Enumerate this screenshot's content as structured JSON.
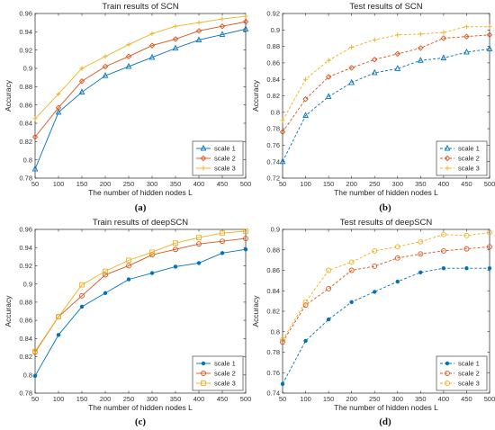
{
  "chart_data": [
    {
      "id": "a",
      "type": "line",
      "title": "Train results of SCN",
      "caption": "(a)",
      "xlabel": "The number of hidden nodes L",
      "ylabel": "Accuracy",
      "x": [
        50,
        100,
        150,
        200,
        250,
        300,
        350,
        400,
        450,
        500
      ],
      "xlim": [
        50,
        500
      ],
      "ylim": [
        0.78,
        0.96
      ],
      "yticks": [
        0.78,
        0.8,
        0.82,
        0.84,
        0.86,
        0.88,
        0.9,
        0.92,
        0.94,
        0.96
      ],
      "legend_position": "bottom-right",
      "series": [
        {
          "name": "scale 1",
          "color": "#0072BD",
          "marker": "triangle",
          "dashed": false,
          "values": [
            0.79,
            0.852,
            0.874,
            0.892,
            0.902,
            0.912,
            0.922,
            0.931,
            0.937,
            0.943
          ]
        },
        {
          "name": "scale 2",
          "color": "#D95319",
          "marker": "diamond",
          "dashed": false,
          "values": [
            0.825,
            0.857,
            0.886,
            0.902,
            0.913,
            0.925,
            0.932,
            0.941,
            0.946,
            0.951
          ]
        },
        {
          "name": "scale 3",
          "color": "#EDB120",
          "marker": "plus",
          "dashed": false,
          "values": [
            0.845,
            0.872,
            0.9,
            0.913,
            0.926,
            0.938,
            0.946,
            0.95,
            0.954,
            0.957
          ]
        }
      ]
    },
    {
      "id": "b",
      "type": "line",
      "title": "Test results of SCN",
      "caption": "(b)",
      "xlabel": "The number of hidden nodes L",
      "ylabel": "Accuracy",
      "x": [
        50,
        100,
        150,
        200,
        250,
        300,
        350,
        400,
        450,
        500
      ],
      "xlim": [
        50,
        500
      ],
      "ylim": [
        0.72,
        0.92
      ],
      "yticks": [
        0.72,
        0.74,
        0.76,
        0.78,
        0.8,
        0.82,
        0.84,
        0.86,
        0.88,
        0.9,
        0.92
      ],
      "legend_position": "bottom-right",
      "series": [
        {
          "name": "scale 1",
          "color": "#0072BD",
          "marker": "triangle",
          "dashed": true,
          "values": [
            0.74,
            0.796,
            0.819,
            0.836,
            0.848,
            0.853,
            0.863,
            0.866,
            0.873,
            0.877
          ]
        },
        {
          "name": "scale 2",
          "color": "#D95319",
          "marker": "diamond",
          "dashed": true,
          "values": [
            0.776,
            0.816,
            0.843,
            0.854,
            0.864,
            0.871,
            0.878,
            0.89,
            0.892,
            0.894
          ]
        },
        {
          "name": "scale 3",
          "color": "#EDB120",
          "marker": "plus",
          "dashed": true,
          "values": [
            0.79,
            0.84,
            0.863,
            0.879,
            0.888,
            0.894,
            0.895,
            0.897,
            0.904,
            0.904
          ]
        }
      ]
    },
    {
      "id": "c",
      "type": "line",
      "title": "Train results of deepSCN",
      "caption": "(c)",
      "xlabel": "The number of hidden nodes L",
      "ylabel": "Accuracy",
      "x": [
        50,
        100,
        150,
        200,
        250,
        300,
        350,
        400,
        450,
        500
      ],
      "xlim": [
        50,
        500
      ],
      "ylim": [
        0.78,
        0.96
      ],
      "yticks": [
        0.78,
        0.8,
        0.82,
        0.84,
        0.86,
        0.88,
        0.9,
        0.92,
        0.94,
        0.96
      ],
      "legend_position": "bottom-right",
      "series": [
        {
          "name": "scale 1",
          "color": "#0072BD",
          "marker": "dot",
          "dashed": false,
          "values": [
            0.799,
            0.844,
            0.875,
            0.89,
            0.905,
            0.912,
            0.919,
            0.923,
            0.934,
            0.938
          ]
        },
        {
          "name": "scale 2",
          "color": "#D95319",
          "marker": "circle",
          "dashed": false,
          "values": [
            0.825,
            0.864,
            0.887,
            0.91,
            0.92,
            0.932,
            0.938,
            0.944,
            0.947,
            0.95
          ]
        },
        {
          "name": "scale 3",
          "color": "#EDB120",
          "marker": "square",
          "dashed": false,
          "values": [
            0.826,
            0.864,
            0.899,
            0.914,
            0.926,
            0.935,
            0.945,
            0.951,
            0.956,
            0.958
          ]
        }
      ]
    },
    {
      "id": "d",
      "type": "line",
      "title": "Test results of deepSCN",
      "caption": "(d)",
      "xlabel": "The number of hidden nodes L",
      "ylabel": "Accuracy",
      "x": [
        50,
        100,
        150,
        200,
        250,
        300,
        350,
        400,
        450,
        500
      ],
      "xlim": [
        50,
        500
      ],
      "ylim": [
        0.74,
        0.9
      ],
      "yticks": [
        0.74,
        0.76,
        0.78,
        0.8,
        0.82,
        0.84,
        0.86,
        0.88,
        0.9
      ],
      "legend_position": "bottom-right",
      "series": [
        {
          "name": "scale 1",
          "color": "#0072BD",
          "marker": "dot",
          "dashed": true,
          "values": [
            0.749,
            0.791,
            0.812,
            0.829,
            0.839,
            0.849,
            0.858,
            0.862,
            0.862,
            0.862
          ]
        },
        {
          "name": "scale 2",
          "color": "#D95319",
          "marker": "circle",
          "dashed": true,
          "values": [
            0.79,
            0.826,
            0.842,
            0.86,
            0.864,
            0.872,
            0.876,
            0.879,
            0.881,
            0.883
          ]
        },
        {
          "name": "scale 3",
          "color": "#EDB120",
          "marker": "circle",
          "dashed": true,
          "values": [
            0.792,
            0.829,
            0.86,
            0.868,
            0.879,
            0.883,
            0.888,
            0.895,
            0.894,
            0.897
          ]
        }
      ]
    }
  ]
}
